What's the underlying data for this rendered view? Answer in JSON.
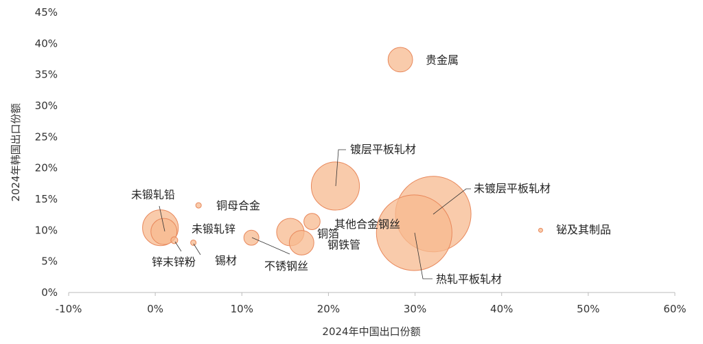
{
  "chart_data": {
    "type": "bubble",
    "xlabel": "2024年中国出口份额",
    "ylabel": "2024年韩国出口份额",
    "xlim": [
      -0.1,
      0.6
    ],
    "ylim": [
      0,
      0.45
    ],
    "xticks": [
      "-10%",
      "0%",
      "10%",
      "20%",
      "30%",
      "40%",
      "50%",
      "60%"
    ],
    "yticks": [
      "0%",
      "5%",
      "10%",
      "15%",
      "20%",
      "25%",
      "30%",
      "35%",
      "40%",
      "45%"
    ],
    "grid": false,
    "colors": {
      "fill": "#f7b98f",
      "stroke": "#e8875a"
    },
    "points": [
      {
        "name": "贵金属",
        "x": 0.283,
        "y": 0.374,
        "size": 3.2
      },
      {
        "name": "镀层平板轧材",
        "x": 0.208,
        "y": 0.171,
        "size": 12.3
      },
      {
        "name": "未镀层平板轧材",
        "x": 0.321,
        "y": 0.126,
        "size": 30.3
      },
      {
        "name": "热轧平板轧材",
        "x": 0.299,
        "y": 0.096,
        "size": 30.3
      },
      {
        "name": "其他合金钢丝",
        "x": 0.156,
        "y": 0.097,
        "size": 4.0
      },
      {
        "name": "铜箔",
        "x": 0.181,
        "y": 0.114,
        "size": 1.4
      },
      {
        "name": "钢铁管",
        "x": 0.169,
        "y": 0.08,
        "size": 3.2
      },
      {
        "name": "不锈钢丝",
        "x": 0.111,
        "y": 0.088,
        "size": 1.2
      },
      {
        "name": "未锻轧铅",
        "x": 0.006,
        "y": 0.104,
        "size": 6.8
      },
      {
        "name": "未锻轧锌",
        "x": 0.01,
        "y": 0.098,
        "size": 3.6
      },
      {
        "name": "锌末锌粉",
        "x": 0.022,
        "y": 0.084,
        "size": 0.25
      },
      {
        "name": "锡材",
        "x": 0.044,
        "y": 0.08,
        "size": 0.16
      },
      {
        "name": "铜母合金",
        "x": 0.05,
        "y": 0.14,
        "size": 0.16
      },
      {
        "name": "铋及其制品",
        "x": 0.445,
        "y": 0.1,
        "size": 0.09
      }
    ]
  }
}
